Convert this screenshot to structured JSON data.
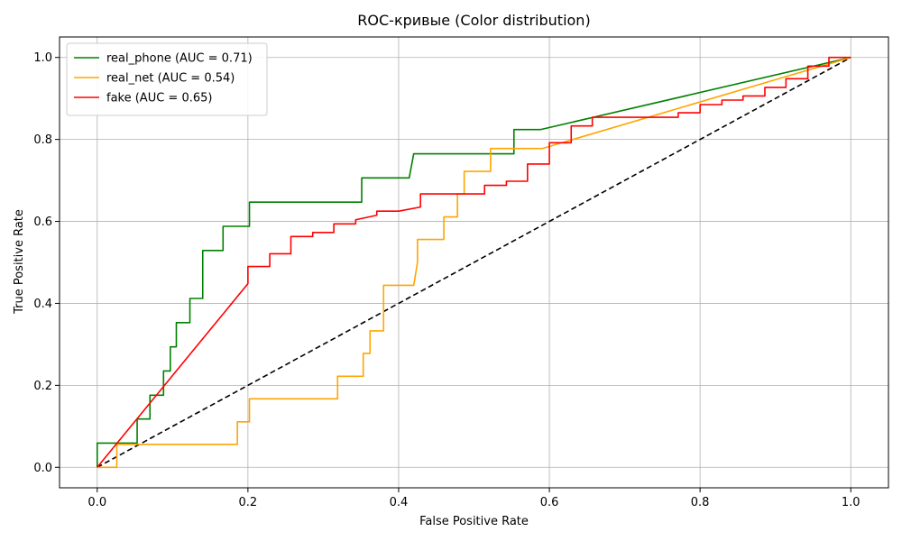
{
  "chart_data": {
    "type": "line",
    "title": "ROC-кривые (Color distribution)",
    "xlabel": "False Positive Rate",
    "ylabel": "True Positive Rate",
    "xlim": [
      -0.05,
      1.05
    ],
    "ylim": [
      -0.05,
      1.05
    ],
    "xticks": [
      "0.0",
      "0.2",
      "0.4",
      "0.6",
      "0.8",
      "1.0"
    ],
    "yticks": [
      "0.0",
      "0.2",
      "0.4",
      "0.6",
      "0.8",
      "1.0"
    ],
    "grid": true,
    "legend_position": "top-left",
    "series": [
      {
        "name": "real_phone (AUC = 0.71)",
        "color": "#008000",
        "x": [
          0,
          0,
          0.053,
          0.053,
          0.07,
          0.07,
          0.088,
          0.088,
          0.097,
          0.097,
          0.105,
          0.105,
          0.123,
          0.123,
          0.14,
          0.14,
          0.167,
          0.167,
          0.202,
          0.202,
          0.351,
          0.351,
          0.414,
          0.42,
          0.553,
          0.553,
          0.588,
          1.0
        ],
        "y": [
          0,
          0.059,
          0.059,
          0.118,
          0.118,
          0.176,
          0.176,
          0.235,
          0.235,
          0.294,
          0.294,
          0.353,
          0.353,
          0.412,
          0.412,
          0.529,
          0.529,
          0.588,
          0.588,
          0.647,
          0.647,
          0.706,
          0.706,
          0.765,
          0.765,
          0.824,
          0.824,
          1.0
        ]
      },
      {
        "name": "real_net (AUC = 0.54)",
        "color": "#ffa500",
        "x": [
          0,
          0.026,
          0.026,
          0.186,
          0.186,
          0.202,
          0.202,
          0.319,
          0.319,
          0.353,
          0.353,
          0.362,
          0.362,
          0.38,
          0.38,
          0.42,
          0.425,
          0.425,
          0.46,
          0.46,
          0.478,
          0.478,
          0.487,
          0.487,
          0.522,
          0.522,
          0.591,
          1.0
        ],
        "y": [
          0,
          0,
          0.056,
          0.056,
          0.111,
          0.111,
          0.167,
          0.167,
          0.222,
          0.222,
          0.278,
          0.278,
          0.333,
          0.333,
          0.444,
          0.444,
          0.5,
          0.556,
          0.556,
          0.611,
          0.611,
          0.667,
          0.667,
          0.722,
          0.722,
          0.778,
          0.778,
          1.0
        ]
      },
      {
        "name": "fake (AUC = 0.65)",
        "color": "#ff0000",
        "x": [
          0,
          0.2,
          0.2,
          0.229,
          0.229,
          0.257,
          0.257,
          0.286,
          0.286,
          0.314,
          0.314,
          0.343,
          0.343,
          0.371,
          0.371,
          0.4,
          0.429,
          0.429,
          0.514,
          0.514,
          0.543,
          0.543,
          0.571,
          0.571,
          0.6,
          0.6,
          0.629,
          0.629,
          0.657,
          0.657,
          0.771,
          0.771,
          0.8,
          0.8,
          0.829,
          0.829,
          0.857,
          0.857,
          0.886,
          0.886,
          0.914,
          0.914,
          0.943,
          0.943,
          0.971,
          0.971,
          1.0
        ],
        "y": [
          0,
          0.448,
          0.49,
          0.49,
          0.521,
          0.521,
          0.563,
          0.563,
          0.573,
          0.573,
          0.594,
          0.594,
          0.604,
          0.615,
          0.625,
          0.625,
          0.635,
          0.667,
          0.667,
          0.688,
          0.688,
          0.698,
          0.698,
          0.74,
          0.74,
          0.792,
          0.792,
          0.833,
          0.833,
          0.854,
          0.854,
          0.865,
          0.865,
          0.885,
          0.885,
          0.896,
          0.896,
          0.906,
          0.906,
          0.927,
          0.927,
          0.948,
          0.948,
          0.979,
          0.979,
          1.0,
          1.0
        ]
      },
      {
        "color": "#000000",
        "dashed": true,
        "x": [
          0,
          1
        ],
        "y": [
          0,
          1
        ]
      }
    ]
  }
}
